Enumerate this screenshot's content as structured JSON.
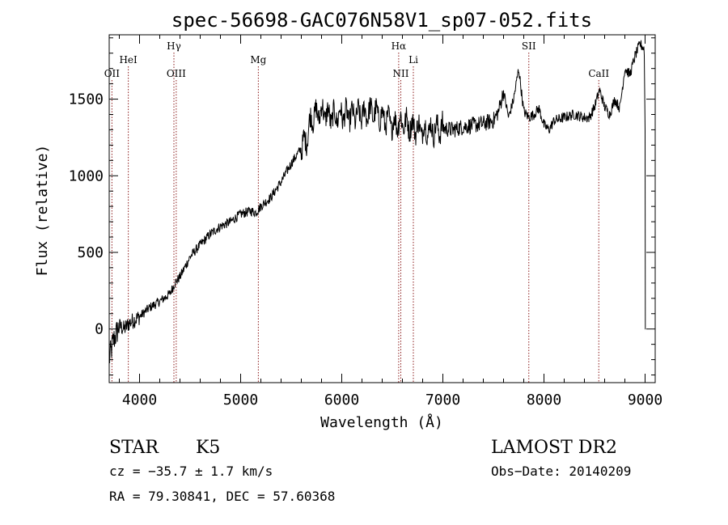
{
  "chart_data": {
    "type": "line",
    "title": "spec-56698-GAC076N58V1_sp07-052.fits",
    "xlabel": "Wavelength (Å)",
    "ylabel": "Flux (relative)",
    "xlim": [
      3700,
      9100
    ],
    "ylim": [
      -350,
      1920
    ],
    "xticks": [
      4000,
      5000,
      6000,
      7000,
      8000,
      9000
    ],
    "xtick_labels": [
      "4000",
      "5000",
      "6000",
      "7000",
      "8000",
      "9000"
    ],
    "yticks": [
      0,
      500,
      1000,
      1500
    ],
    "ytick_labels": [
      "0",
      "500",
      "1000",
      "1500"
    ],
    "grid": false,
    "line_color": "#000000",
    "marker_color": "#8b1a1a",
    "spectrum_anchors": {
      "x": [
        3700,
        3740,
        3800,
        3850,
        3900,
        3950,
        4000,
        4100,
        4200,
        4300,
        4350,
        4400,
        4500,
        4600,
        4700,
        4800,
        4900,
        5000,
        5100,
        5150,
        5200,
        5300,
        5400,
        5500,
        5600,
        5650,
        5700,
        5800,
        5900,
        6000,
        6100,
        6200,
        6300,
        6400,
        6500,
        6600,
        6700,
        6800,
        6900,
        7000,
        7100,
        7200,
        7300,
        7400,
        7500,
        7550,
        7600,
        7650,
        7700,
        7750,
        7800,
        7850,
        7900,
        7950,
        8000,
        8050,
        8100,
        8200,
        8300,
        8400,
        8450,
        8500,
        8550,
        8600,
        8650,
        8700,
        8750,
        8800,
        8850,
        8900,
        8950,
        8990,
        9000
      ],
      "y": [
        -200,
        -80,
        20,
        0,
        40,
        60,
        80,
        140,
        180,
        230,
        300,
        340,
        470,
        550,
        620,
        670,
        700,
        750,
        770,
        760,
        800,
        860,
        960,
        1080,
        1180,
        1240,
        1380,
        1420,
        1380,
        1400,
        1390,
        1400,
        1420,
        1380,
        1340,
        1350,
        1320,
        1300,
        1300,
        1310,
        1300,
        1320,
        1330,
        1340,
        1360,
        1420,
        1550,
        1380,
        1500,
        1700,
        1420,
        1380,
        1400,
        1440,
        1330,
        1300,
        1360,
        1380,
        1400,
        1380,
        1380,
        1450,
        1560,
        1450,
        1400,
        1500,
        1440,
        1700,
        1660,
        1780,
        1860,
        1830,
        1740
      ]
    },
    "spectral_lines": [
      {
        "name": "OII",
        "wavelength": 3727,
        "label_row": 2
      },
      {
        "name": "HeI",
        "wavelength": 3889,
        "label_row": 1
      },
      {
        "name": "Hγ",
        "wavelength": 4340,
        "label_row": 0
      },
      {
        "name": "OIII",
        "wavelength": 4363,
        "label_row": 2
      },
      {
        "name": "Mg",
        "wavelength": 5175,
        "label_row": 1
      },
      {
        "name": "Hα",
        "wavelength": 6563,
        "label_row": 0
      },
      {
        "name": "NII",
        "wavelength": 6584,
        "label_row": 2
      },
      {
        "name": "Li",
        "wavelength": 6708,
        "label_row": 1
      },
      {
        "name": "SII",
        "wavelength": 7850,
        "label_row": 0
      },
      {
        "name": "CaII",
        "wavelength": 8542,
        "label_row": 2
      }
    ]
  },
  "info": {
    "class": "STAR",
    "subclass": "K5",
    "survey": "LAMOST DR2",
    "cz": "cz = −35.7 ± 1.7 km/s",
    "obs_date": "Obs−Date: 20140209",
    "coords": "RA =  79.30841, DEC =  57.60368"
  }
}
